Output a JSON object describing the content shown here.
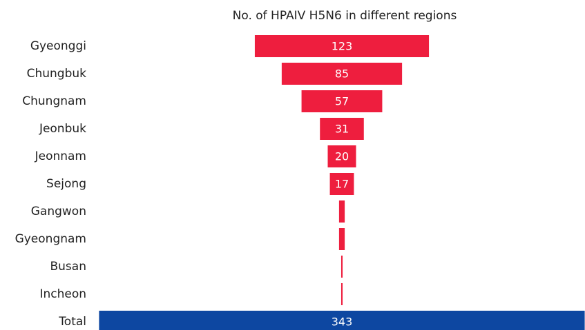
{
  "chart_data": {
    "type": "funnel",
    "title": "No. of HPAIV H5N6 in different regions",
    "categories": [
      "Gyeonggi",
      "Chungbuk",
      "Chungnam",
      "Jeonbuk",
      "Jeonnam",
      "Sejong",
      "Gangwon",
      "Gyeongnam",
      "Busan",
      "Incheon",
      "Total"
    ],
    "values": [
      123,
      85,
      57,
      31,
      20,
      17,
      4,
      4,
      1,
      1,
      343
    ],
    "colors": [
      "#ee1e3e",
      "#ee1e3e",
      "#ee1e3e",
      "#ee1e3e",
      "#ee1e3e",
      "#ee1e3e",
      "#ee1e3e",
      "#ee1e3e",
      "#ee1e3e",
      "#ee1e3e",
      "#0d47a1"
    ]
  }
}
